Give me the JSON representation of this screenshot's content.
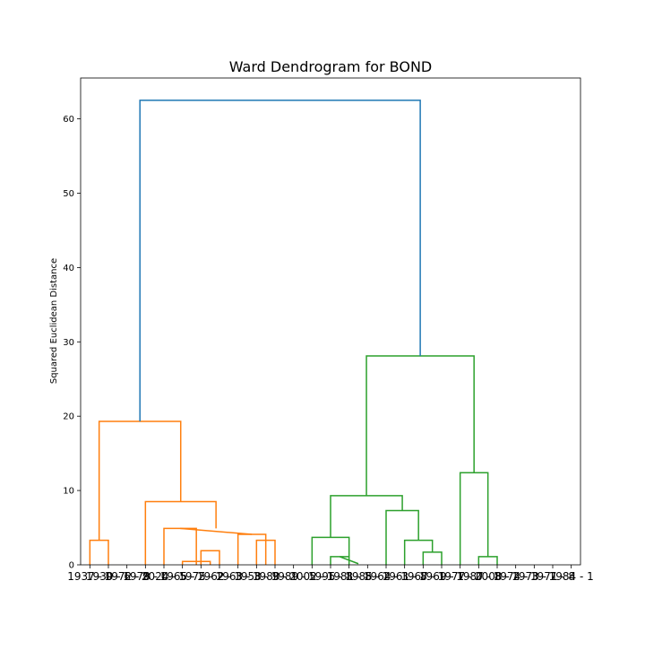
{
  "chart_data": {
    "type": "dendrogram",
    "title": "Ward Dendrogram for BOND",
    "xlabel": "",
    "ylabel": "Squared Euclidean Distance",
    "ylim": [
      0,
      65.5
    ],
    "yticks": [
      0,
      10,
      20,
      30,
      40,
      50,
      60
    ],
    "grid": false,
    "leaf_labels": [
      "1937 - 0",
      "1939 - 6",
      "1972 - 9",
      "1978 - 0",
      "2024 - 5",
      "1965 - 2",
      "1975 - 2",
      "1962 - 3",
      "1963 - 3",
      "1958 - 9",
      "1983 - 1",
      "1989 - 5",
      "2002 - 1",
      "1995 - 8",
      "1981 - 8",
      "1985 - 2",
      "1964 - 3",
      "1961 - 8",
      "1967 - 1",
      "1969 - 1",
      "1977 - 0",
      "1987 - 8",
      "2008 - 2",
      "1974 - 3",
      "1973 - 7",
      "1971 - 8",
      "1984 - 1"
    ],
    "colors": {
      "root": "#1f77b4",
      "cluster_1": "#ff7f0e",
      "cluster_2": "#2ca02c"
    },
    "links": [
      {
        "x": [
          5,
          5,
          15,
          15
        ],
        "y": [
          0,
          3.3,
          3.3,
          0
        ],
        "color": "#ff7f0e"
      },
      {
        "x": [
          65,
          65,
          75,
          75
        ],
        "y": [
          0,
          1.9,
          1.9,
          0
        ],
        "color": "#ff7f0e"
      },
      {
        "x": [
          55,
          55,
          70,
          70
        ],
        "y": [
          0,
          0.45,
          0.45,
          0
        ],
        "color": "#ff7f0e"
      },
      {
        "x": [
          45,
          45,
          62.5,
          62.5
        ],
        "y": [
          0,
          4.9,
          4.9,
          0
        ],
        "color": "#ff7f0e"
      },
      {
        "x": [
          95,
          95,
          105,
          105
        ],
        "y": [
          0,
          3.3,
          3.3,
          0
        ],
        "color": "#ff7f0e"
      },
      {
        "x": [
          85,
          85,
          100,
          100
        ],
        "y": [
          0,
          4.1,
          4.1,
          0
        ],
        "color": "#ff7f0e"
      },
      {
        "x": [
          53.75,
          53.75,
          92.5,
          92.5
        ],
        "y": [
          4.9,
          4.9,
          4.1,
          4.1
        ],
        "color": "#ff7f0e"
      },
      {
        "x": [
          35,
          35,
          73.125,
          73.125
        ],
        "y": [
          0,
          8.5,
          8.5,
          4.9
        ],
        "color": "#ff7f0e"
      },
      {
        "x": [
          10,
          10,
          54.0625,
          54.0625
        ],
        "y": [
          3.3,
          19.3,
          19.3,
          8.5
        ],
        "color": "#ff7f0e"
      },
      {
        "x": [
          135,
          135,
          145,
          145
        ],
        "y": [
          0,
          1.1,
          1.1,
          0
        ],
        "color": "#2ca02c"
      },
      {
        "x": [
          140,
          140,
          150,
          150
        ],
        "y": [
          1.1,
          1.1,
          0.15,
          0.15
        ],
        "color": "#2ca02c"
      },
      {
        "x": [
          125,
          125,
          145,
          145
        ],
        "y": [
          0,
          3.7,
          3.7,
          1.1
        ],
        "color": "#2ca02c"
      },
      {
        "x": [
          185,
          185,
          195,
          195
        ],
        "y": [
          0,
          1.7,
          1.7,
          0
        ],
        "color": "#2ca02c"
      },
      {
        "x": [
          175,
          175,
          190,
          190
        ],
        "y": [
          0,
          3.3,
          3.3,
          1.7
        ],
        "color": "#2ca02c"
      },
      {
        "x": [
          165,
          165,
          182.5,
          182.5
        ],
        "y": [
          0,
          7.3,
          7.3,
          3.3
        ],
        "color": "#2ca02c"
      },
      {
        "x": [
          135,
          135,
          173.75,
          173.75
        ],
        "y": [
          3.7,
          9.3,
          9.3,
          7.3
        ],
        "color": "#2ca02c"
      },
      {
        "x": [
          215,
          215,
          225,
          225
        ],
        "y": [
          0,
          1.1,
          1.1,
          0
        ],
        "color": "#2ca02c"
      },
      {
        "x": [
          205,
          205,
          220,
          220
        ],
        "y": [
          0,
          12.4,
          12.4,
          1.1
        ],
        "color": "#2ca02c"
      },
      {
        "x": [
          154.375,
          154.375,
          212.5,
          212.5
        ],
        "y": [
          9.3,
          28.1,
          28.1,
          12.4
        ],
        "color": "#2ca02c"
      },
      {
        "x": [
          32.03,
          32.03,
          183.44,
          183.44
        ],
        "y": [
          19.3,
          62.5,
          62.5,
          28.1
        ],
        "color": "#1f77b4"
      }
    ]
  }
}
